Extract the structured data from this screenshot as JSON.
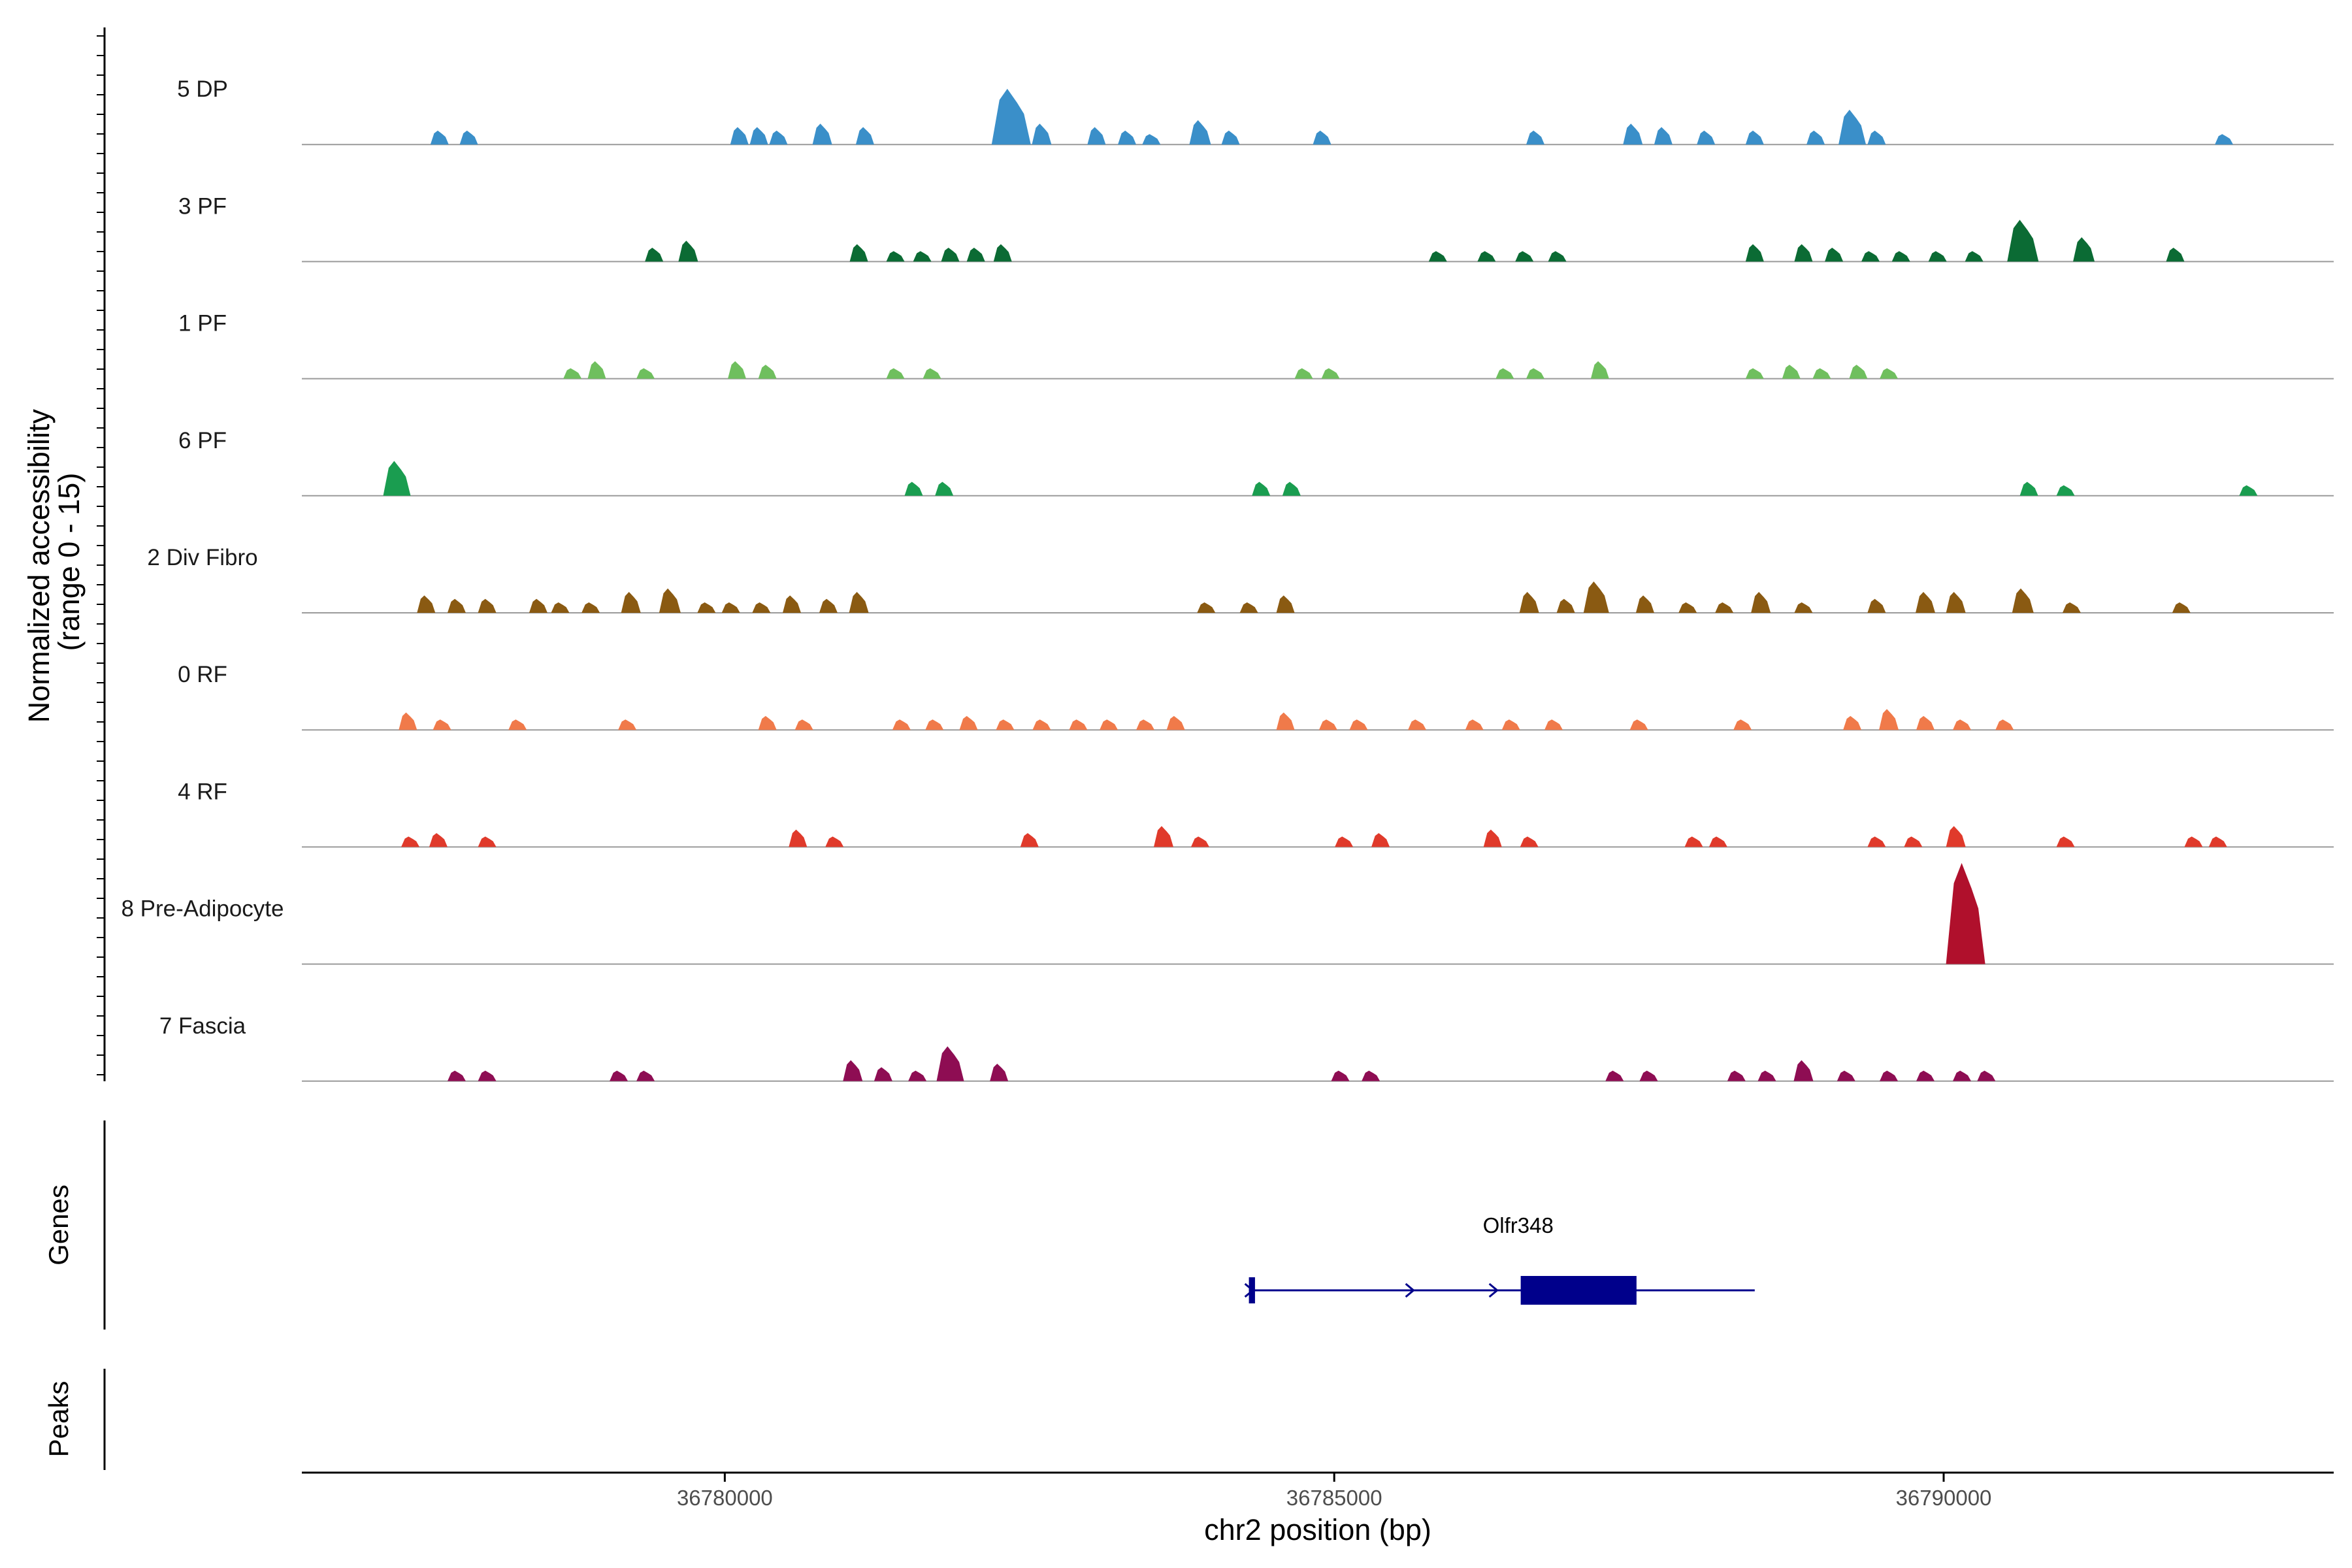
{
  "chart_data": {
    "type": "area",
    "ylabel": "Normalized accessibility\n(range 0 - 15)",
    "xlabel": "chr2 position (bp)",
    "ylim": [
      0,
      15
    ],
    "xlim": [
      36776530,
      36793200
    ],
    "x_ticks": [
      36780000,
      36785000,
      36790000
    ],
    "x_tick_labels": [
      "36780000",
      "36785000",
      "36790000"
    ],
    "tracks": [
      {
        "name": "5 DP",
        "color": "#3a8fc9",
        "peaks": [
          [
            36777660,
            2
          ],
          [
            36777900,
            2
          ],
          [
            36780120,
            2.5
          ],
          [
            36780280,
            2.5
          ],
          [
            36780440,
            2
          ],
          [
            36780800,
            3
          ],
          [
            36781150,
            2.5
          ],
          [
            36782350,
            8
          ],
          [
            36782600,
            3
          ],
          [
            36783050,
            2.5
          ],
          [
            36783300,
            2
          ],
          [
            36783500,
            1.5
          ],
          [
            36783900,
            3.5
          ],
          [
            36784150,
            2
          ],
          [
            36784900,
            2
          ],
          [
            36786650,
            2
          ],
          [
            36787450,
            3
          ],
          [
            36787700,
            2.5
          ],
          [
            36788050,
            2
          ],
          [
            36788450,
            2
          ],
          [
            36788950,
            2
          ],
          [
            36789250,
            5
          ],
          [
            36789450,
            2
          ],
          [
            36792300,
            1.5
          ]
        ]
      },
      {
        "name": "3 PF",
        "color": "#0b6b34",
        "peaks": [
          [
            36779420,
            2
          ],
          [
            36779700,
            3
          ],
          [
            36781100,
            2.5
          ],
          [
            36781400,
            1.5
          ],
          [
            36781620,
            1.5
          ],
          [
            36781850,
            2
          ],
          [
            36782060,
            2
          ],
          [
            36782280,
            2.5
          ],
          [
            36785850,
            1.5
          ],
          [
            36786250,
            1.5
          ],
          [
            36786560,
            1.5
          ],
          [
            36786830,
            1.5
          ],
          [
            36788450,
            2.5
          ],
          [
            36788850,
            2.5
          ],
          [
            36789100,
            2
          ],
          [
            36789400,
            1.5
          ],
          [
            36789650,
            1.5
          ],
          [
            36789950,
            1.5
          ],
          [
            36790250,
            1.5
          ],
          [
            36790650,
            6
          ],
          [
            36791150,
            3.5
          ],
          [
            36791900,
            2
          ]
        ]
      },
      {
        "name": "1 PF",
        "color": "#6fbf5e",
        "peaks": [
          [
            36778750,
            1.5
          ],
          [
            36778950,
            2.5
          ],
          [
            36779350,
            1.5
          ],
          [
            36780100,
            2.5
          ],
          [
            36780350,
            2
          ],
          [
            36781400,
            1.5
          ],
          [
            36781700,
            1.5
          ],
          [
            36784750,
            1.5
          ],
          [
            36784970,
            1.5
          ],
          [
            36786400,
            1.5
          ],
          [
            36786650,
            1.5
          ],
          [
            36787180,
            2.5
          ],
          [
            36788450,
            1.5
          ],
          [
            36788750,
            2
          ],
          [
            36789000,
            1.5
          ],
          [
            36789300,
            2
          ],
          [
            36789550,
            1.5
          ]
        ]
      },
      {
        "name": "6 PF",
        "color": "#1a9d50",
        "peaks": [
          [
            36777310,
            5
          ],
          [
            36781550,
            2
          ],
          [
            36781800,
            2
          ],
          [
            36784400,
            2
          ],
          [
            36784650,
            2
          ],
          [
            36790700,
            2
          ],
          [
            36791000,
            1.5
          ],
          [
            36792500,
            1.5
          ]
        ]
      },
      {
        "name": "2 Div Fibro",
        "color": "#8a5a12",
        "peaks": [
          [
            36777550,
            2.5
          ],
          [
            36777800,
            2
          ],
          [
            36778050,
            2
          ],
          [
            36778470,
            2
          ],
          [
            36778650,
            1.5
          ],
          [
            36778900,
            1.5
          ],
          [
            36779230,
            3
          ],
          [
            36779550,
            3.5
          ],
          [
            36779850,
            1.5
          ],
          [
            36780050,
            1.5
          ],
          [
            36780300,
            1.5
          ],
          [
            36780550,
            2.5
          ],
          [
            36780850,
            2
          ],
          [
            36781100,
            3
          ],
          [
            36783950,
            1.5
          ],
          [
            36784300,
            1.5
          ],
          [
            36784600,
            2.5
          ],
          [
            36786600,
            3
          ],
          [
            36786900,
            2
          ],
          [
            36787150,
            4.5
          ],
          [
            36787550,
            2.5
          ],
          [
            36787900,
            1.5
          ],
          [
            36788200,
            1.5
          ],
          [
            36788500,
            3
          ],
          [
            36788850,
            1.5
          ],
          [
            36789450,
            2
          ],
          [
            36789850,
            3
          ],
          [
            36790100,
            3
          ],
          [
            36790650,
            3.5
          ],
          [
            36791050,
            1.5
          ],
          [
            36791950,
            1.5
          ]
        ]
      },
      {
        "name": "0 RF",
        "color": "#f07a4a",
        "peaks": [
          [
            36777400,
            2.5
          ],
          [
            36777680,
            1.5
          ],
          [
            36778300,
            1.5
          ],
          [
            36779200,
            1.5
          ],
          [
            36780350,
            2
          ],
          [
            36780650,
            1.5
          ],
          [
            36781450,
            1.5
          ],
          [
            36781720,
            1.5
          ],
          [
            36782000,
            2
          ],
          [
            36782300,
            1.5
          ],
          [
            36782600,
            1.5
          ],
          [
            36782900,
            1.5
          ],
          [
            36783150,
            1.5
          ],
          [
            36783450,
            1.5
          ],
          [
            36783700,
            2
          ],
          [
            36784600,
            2.5
          ],
          [
            36784950,
            1.5
          ],
          [
            36785200,
            1.5
          ],
          [
            36785680,
            1.5
          ],
          [
            36786150,
            1.5
          ],
          [
            36786450,
            1.5
          ],
          [
            36786800,
            1.5
          ],
          [
            36787500,
            1.5
          ],
          [
            36788350,
            1.5
          ],
          [
            36789250,
            2
          ],
          [
            36789550,
            3
          ],
          [
            36789850,
            2
          ],
          [
            36790150,
            1.5
          ],
          [
            36790500,
            1.5
          ]
        ]
      },
      {
        "name": "4 RF",
        "color": "#e03a2b",
        "peaks": [
          [
            36777420,
            1.5
          ],
          [
            36777650,
            2
          ],
          [
            36778050,
            1.5
          ],
          [
            36780600,
            2.5
          ],
          [
            36780900,
            1.5
          ],
          [
            36782500,
            2
          ],
          [
            36783600,
            3
          ],
          [
            36783900,
            1.5
          ],
          [
            36785080,
            1.5
          ],
          [
            36785380,
            2
          ],
          [
            36786300,
            2.5
          ],
          [
            36786600,
            1.5
          ],
          [
            36787950,
            1.5
          ],
          [
            36788150,
            1.5
          ],
          [
            36789450,
            1.5
          ],
          [
            36789750,
            1.5
          ],
          [
            36790100,
            3
          ],
          [
            36791000,
            1.5
          ],
          [
            36792050,
            1.5
          ],
          [
            36792250,
            1.5
          ]
        ]
      },
      {
        "name": "8 Pre-Adipocyte",
        "color": "#b0102c",
        "peaks": [
          [
            36790180,
            14.5
          ]
        ]
      },
      {
        "name": "7 Fascia",
        "color": "#8e0d53",
        "peaks": [
          [
            36777800,
            1.5
          ],
          [
            36778050,
            1.5
          ],
          [
            36779130,
            1.5
          ],
          [
            36779350,
            1.5
          ],
          [
            36781050,
            3
          ],
          [
            36781300,
            2
          ],
          [
            36781580,
            1.5
          ],
          [
            36781850,
            5
          ],
          [
            36782250,
            2.5
          ],
          [
            36785050,
            1.5
          ],
          [
            36785300,
            1.5
          ],
          [
            36787300,
            1.5
          ],
          [
            36787580,
            1.5
          ],
          [
            36788300,
            1.5
          ],
          [
            36788550,
            1.5
          ],
          [
            36788850,
            3
          ],
          [
            36789200,
            1.5
          ],
          [
            36789550,
            1.5
          ],
          [
            36789850,
            1.5
          ],
          [
            36790150,
            1.5
          ],
          [
            36790350,
            1.5
          ]
        ]
      }
    ],
    "genes": [
      {
        "name": "Olfr348",
        "start": 36784300,
        "end": 36788450,
        "strand": "+",
        "exons": [
          [
            36784300,
            36784350
          ],
          [
            36786530,
            36787480
          ]
        ]
      }
    ],
    "panels": [
      "Genes",
      "Peaks"
    ]
  }
}
